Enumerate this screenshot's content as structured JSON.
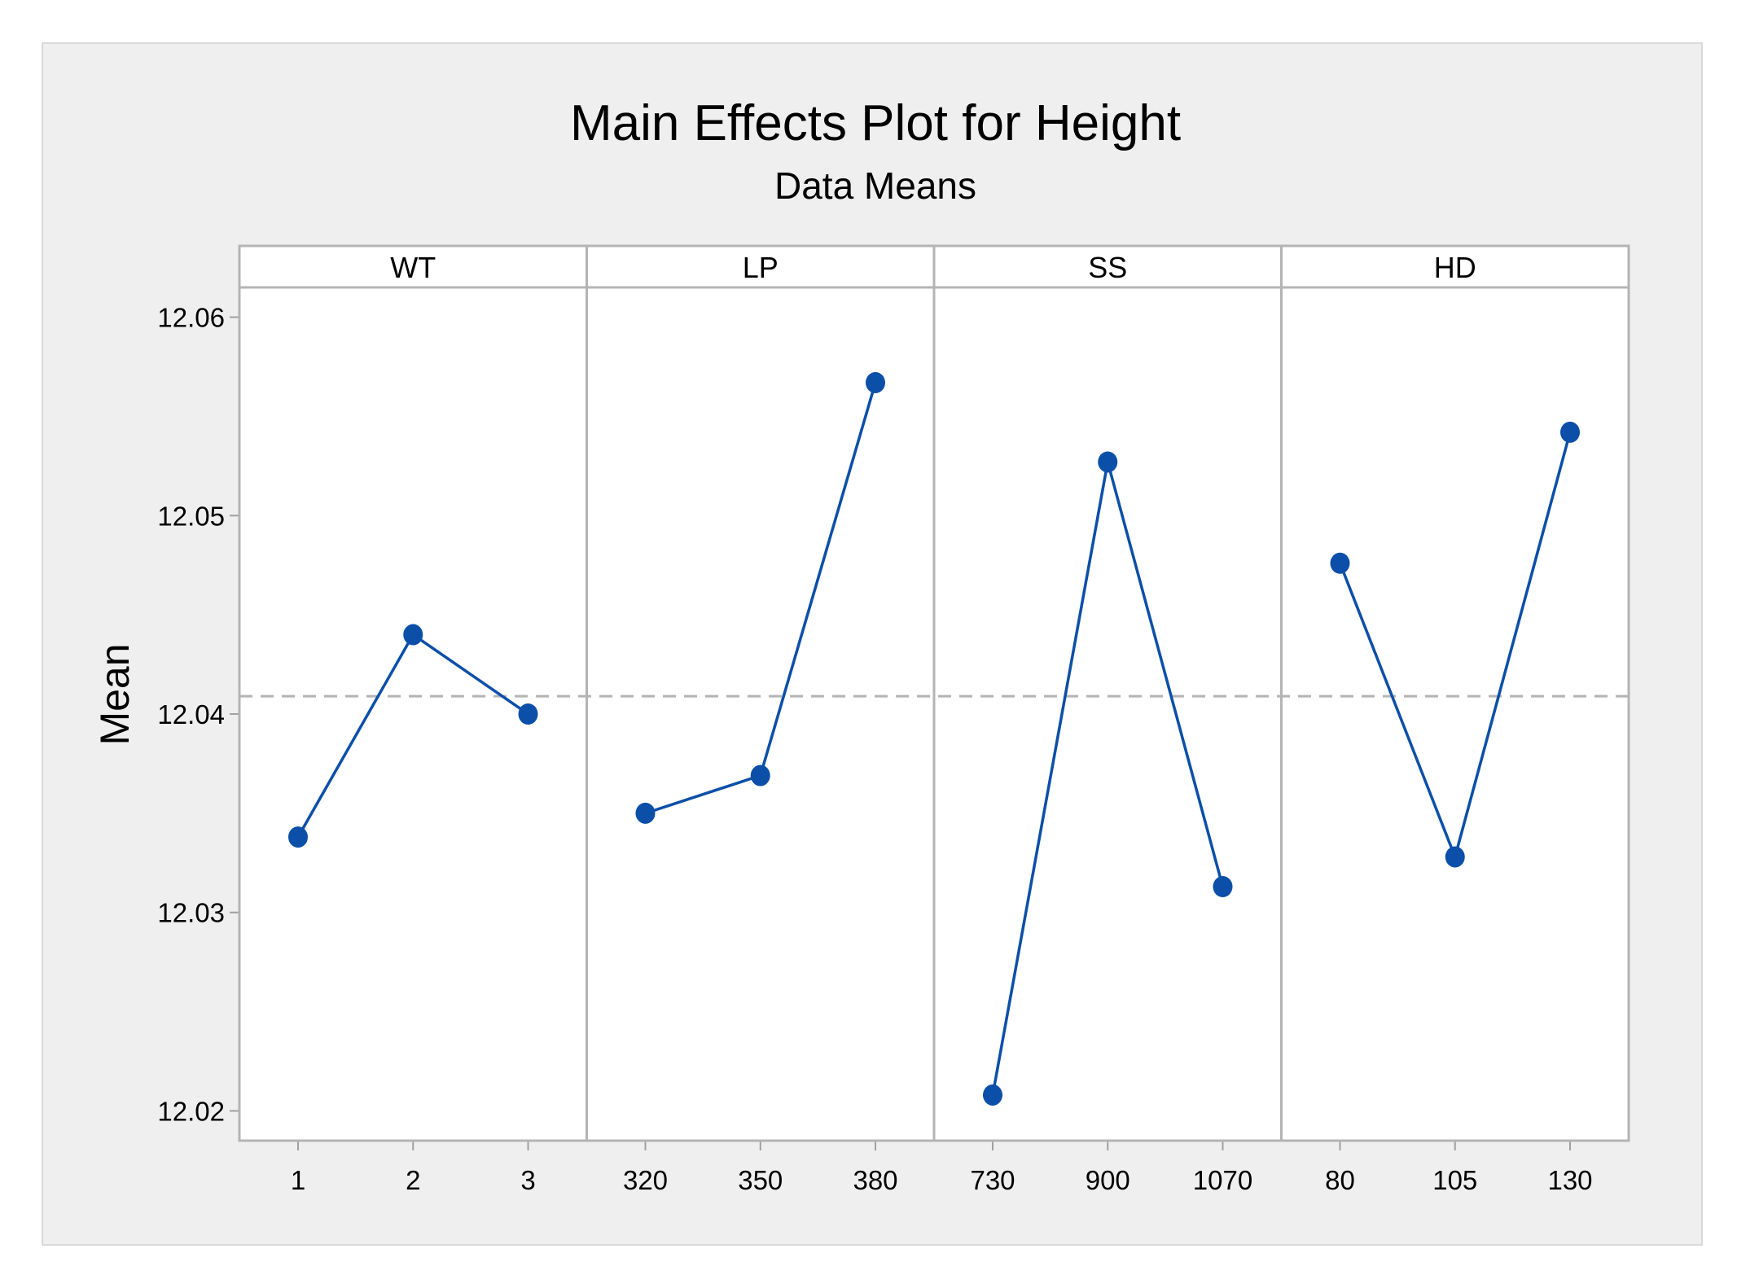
{
  "chart_data": {
    "type": "line",
    "title": "Main Effects Plot for Height",
    "subtitle": "Data Means",
    "ylabel": "Mean",
    "ylim": [
      12.0185,
      12.0615
    ],
    "yticks": [
      "12.02",
      "12.03",
      "12.04",
      "12.05",
      "12.06"
    ],
    "ytick_values": [
      12.02,
      12.03,
      12.04,
      12.05,
      12.06
    ],
    "reference_mean": 12.0409,
    "grid": false,
    "line_color": "#0b4fa8",
    "reference_color": "#b4b4b4",
    "panels": [
      {
        "name": "WT",
        "x": [
          "1",
          "2",
          "3"
        ],
        "values": [
          12.0338,
          12.044,
          12.04
        ]
      },
      {
        "name": "LP",
        "x": [
          "320",
          "350",
          "380"
        ],
        "values": [
          12.035,
          12.0369,
          12.0567
        ]
      },
      {
        "name": "SS",
        "x": [
          "730",
          "900",
          "1070"
        ],
        "values": [
          12.0208,
          12.0527,
          12.0313
        ]
      },
      {
        "name": "HD",
        "x": [
          "80",
          "105",
          "130"
        ],
        "values": [
          12.0476,
          12.0328,
          12.0542
        ]
      }
    ]
  }
}
